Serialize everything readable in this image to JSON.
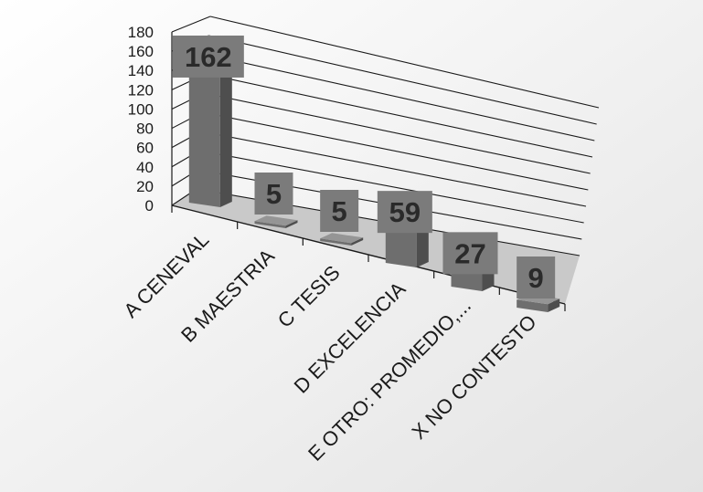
{
  "chart_data": {
    "type": "bar",
    "categories": [
      "A CENEVAL",
      "B MAESTRIA",
      "C TESIS",
      "D EXCELENCIA",
      "E OTRO: PROMEDIO,...",
      "X NO CONTESTO"
    ],
    "values": [
      162,
      5,
      5,
      59,
      27,
      9
    ],
    "data_labels": [
      "162",
      "5",
      "5",
      "59",
      "27",
      "9"
    ],
    "yticks": [
      "0",
      "20",
      "40",
      "60",
      "80",
      "100",
      "120",
      "140",
      "160",
      "180"
    ],
    "ylim": [
      0,
      180
    ],
    "grid": true,
    "legend": "none",
    "style": "3d-perspective",
    "colors": {
      "bar": "#6e6e6e",
      "bar_side": "#4e4e4e",
      "bar_top": "#959595",
      "label_box": "#7b7b7b",
      "floor": "#c9c9c9",
      "grid": "#1a1a1a"
    }
  }
}
